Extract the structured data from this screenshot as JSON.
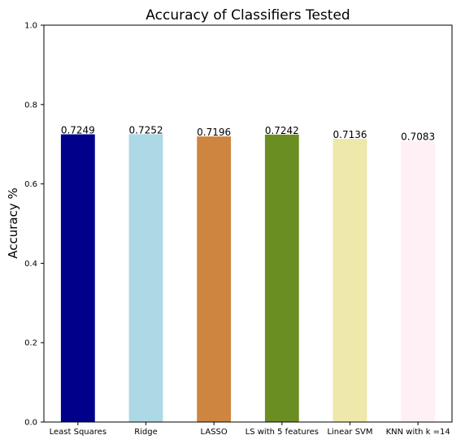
{
  "chart_data": {
    "type": "bar",
    "title": "Accuracy of Classifiers Tested",
    "xlabel": "",
    "ylabel": "Accuracy %",
    "ylim": [
      0,
      1.0
    ],
    "yticks": [
      "0.0",
      "0.2",
      "0.4",
      "0.6",
      "0.8",
      "1.0"
    ],
    "grid": false,
    "categories": [
      "Least Squares",
      "Ridge",
      "LASSO",
      "LS with 5 features",
      "Linear SVM",
      "KNN with k =14"
    ],
    "values": [
      0.7249,
      0.7252,
      0.7196,
      0.7242,
      0.7136,
      0.7083
    ],
    "value_labels": [
      "0.7249",
      "0.7252",
      "0.7196",
      "0.7242",
      "0.7136",
      "0.7083"
    ],
    "colors": [
      "#00008b",
      "#add8e6",
      "#cd853f",
      "#6b8e23",
      "#eee8aa",
      "#fff0f5"
    ]
  }
}
